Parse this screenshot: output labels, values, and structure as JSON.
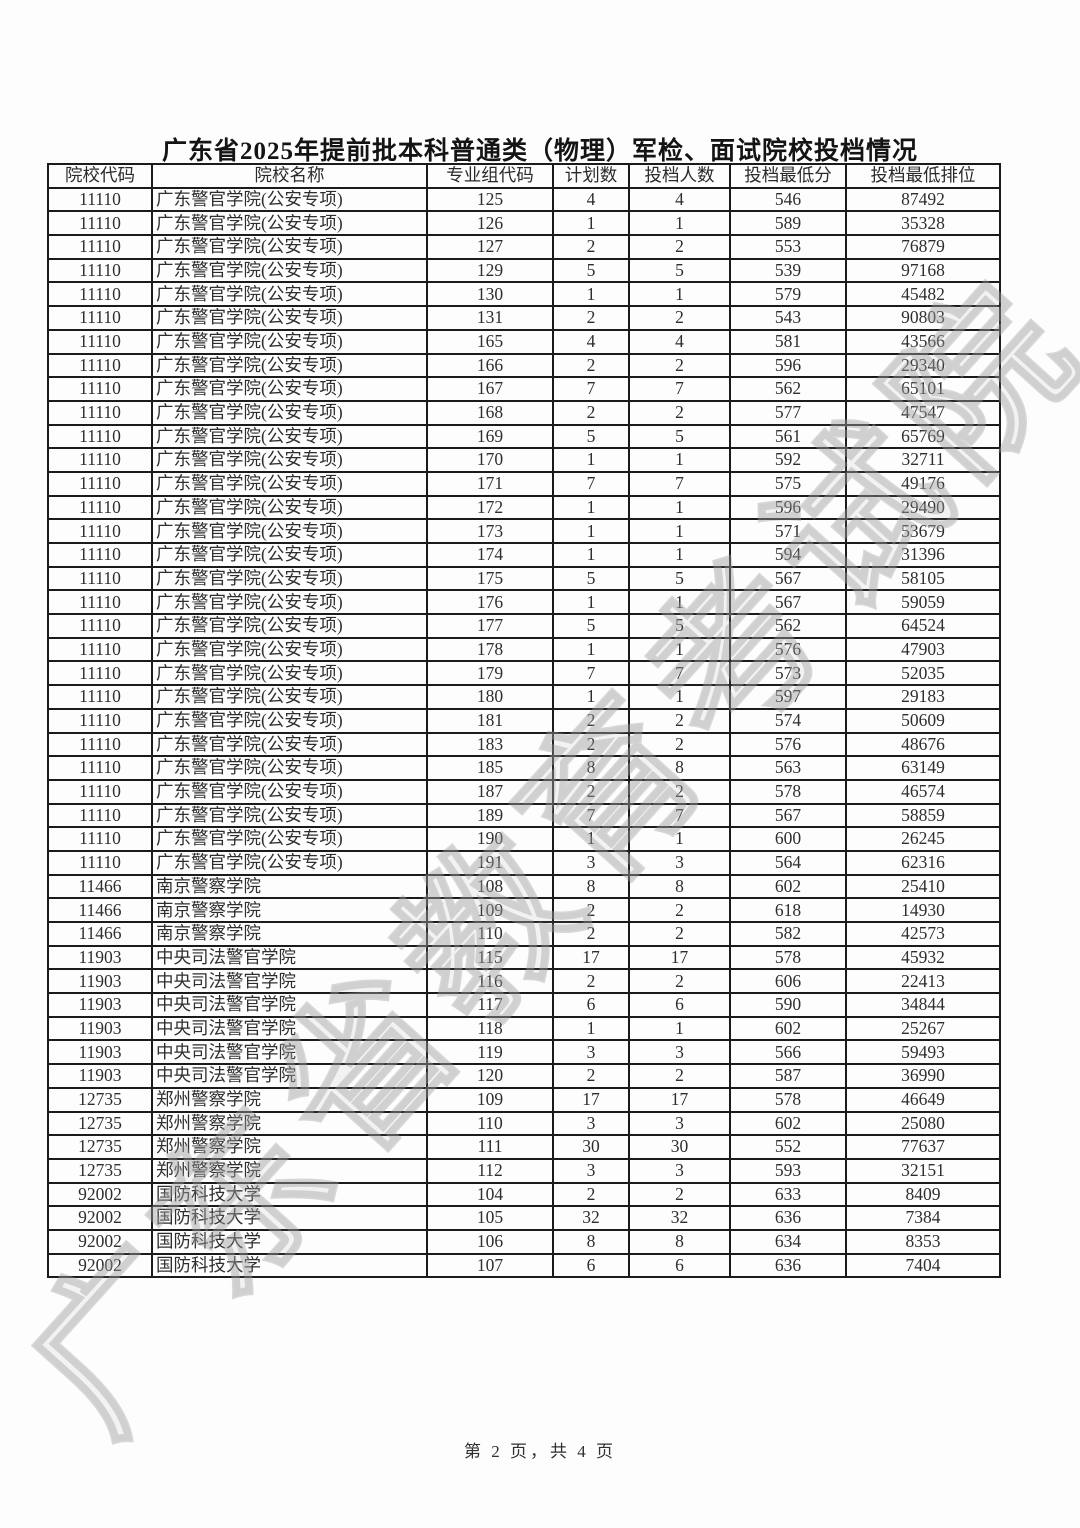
{
  "page": {
    "title": "广东省2025年提前批本科普通类（物理）军检、面试院校投档情况",
    "footer": "第 2 页，共 4 页",
    "watermark": "广东省教育考试院"
  },
  "table": {
    "headers": [
      "院校代码",
      "院校名称",
      "专业组代码",
      "计划数",
      "投档人数",
      "投档最低分",
      "投档最低排位"
    ],
    "rows": [
      [
        "11110",
        "广东警官学院(公安专项)",
        "125",
        "4",
        "4",
        "546",
        "87492"
      ],
      [
        "11110",
        "广东警官学院(公安专项)",
        "126",
        "1",
        "1",
        "589",
        "35328"
      ],
      [
        "11110",
        "广东警官学院(公安专项)",
        "127",
        "2",
        "2",
        "553",
        "76879"
      ],
      [
        "11110",
        "广东警官学院(公安专项)",
        "129",
        "5",
        "5",
        "539",
        "97168"
      ],
      [
        "11110",
        "广东警官学院(公安专项)",
        "130",
        "1",
        "1",
        "579",
        "45482"
      ],
      [
        "11110",
        "广东警官学院(公安专项)",
        "131",
        "2",
        "2",
        "543",
        "90803"
      ],
      [
        "11110",
        "广东警官学院(公安专项)",
        "165",
        "4",
        "4",
        "581",
        "43566"
      ],
      [
        "11110",
        "广东警官学院(公安专项)",
        "166",
        "2",
        "2",
        "596",
        "29340"
      ],
      [
        "11110",
        "广东警官学院(公安专项)",
        "167",
        "7",
        "7",
        "562",
        "65101"
      ],
      [
        "11110",
        "广东警官学院(公安专项)",
        "168",
        "2",
        "2",
        "577",
        "47547"
      ],
      [
        "11110",
        "广东警官学院(公安专项)",
        "169",
        "5",
        "5",
        "561",
        "65769"
      ],
      [
        "11110",
        "广东警官学院(公安专项)",
        "170",
        "1",
        "1",
        "592",
        "32711"
      ],
      [
        "11110",
        "广东警官学院(公安专项)",
        "171",
        "7",
        "7",
        "575",
        "49176"
      ],
      [
        "11110",
        "广东警官学院(公安专项)",
        "172",
        "1",
        "1",
        "596",
        "29490"
      ],
      [
        "11110",
        "广东警官学院(公安专项)",
        "173",
        "1",
        "1",
        "571",
        "53679"
      ],
      [
        "11110",
        "广东警官学院(公安专项)",
        "174",
        "1",
        "1",
        "594",
        "31396"
      ],
      [
        "11110",
        "广东警官学院(公安专项)",
        "175",
        "5",
        "5",
        "567",
        "58105"
      ],
      [
        "11110",
        "广东警官学院(公安专项)",
        "176",
        "1",
        "1",
        "567",
        "59059"
      ],
      [
        "11110",
        "广东警官学院(公安专项)",
        "177",
        "5",
        "5",
        "562",
        "64524"
      ],
      [
        "11110",
        "广东警官学院(公安专项)",
        "178",
        "1",
        "1",
        "576",
        "47903"
      ],
      [
        "11110",
        "广东警官学院(公安专项)",
        "179",
        "7",
        "7",
        "573",
        "52035"
      ],
      [
        "11110",
        "广东警官学院(公安专项)",
        "180",
        "1",
        "1",
        "597",
        "29183"
      ],
      [
        "11110",
        "广东警官学院(公安专项)",
        "181",
        "2",
        "2",
        "574",
        "50609"
      ],
      [
        "11110",
        "广东警官学院(公安专项)",
        "183",
        "2",
        "2",
        "576",
        "48676"
      ],
      [
        "11110",
        "广东警官学院(公安专项)",
        "185",
        "8",
        "8",
        "563",
        "63149"
      ],
      [
        "11110",
        "广东警官学院(公安专项)",
        "187",
        "2",
        "2",
        "578",
        "46574"
      ],
      [
        "11110",
        "广东警官学院(公安专项)",
        "189",
        "7",
        "7",
        "567",
        "58859"
      ],
      [
        "11110",
        "广东警官学院(公安专项)",
        "190",
        "1",
        "1",
        "600",
        "26245"
      ],
      [
        "11110",
        "广东警官学院(公安专项)",
        "191",
        "3",
        "3",
        "564",
        "62316"
      ],
      [
        "11466",
        "南京警察学院",
        "108",
        "8",
        "8",
        "602",
        "25410"
      ],
      [
        "11466",
        "南京警察学院",
        "109",
        "2",
        "2",
        "618",
        "14930"
      ],
      [
        "11466",
        "南京警察学院",
        "110",
        "2",
        "2",
        "582",
        "42573"
      ],
      [
        "11903",
        "中央司法警官学院",
        "115",
        "17",
        "17",
        "578",
        "45932"
      ],
      [
        "11903",
        "中央司法警官学院",
        "116",
        "2",
        "2",
        "606",
        "22413"
      ],
      [
        "11903",
        "中央司法警官学院",
        "117",
        "6",
        "6",
        "590",
        "34844"
      ],
      [
        "11903",
        "中央司法警官学院",
        "118",
        "1",
        "1",
        "602",
        "25267"
      ],
      [
        "11903",
        "中央司法警官学院",
        "119",
        "3",
        "3",
        "566",
        "59493"
      ],
      [
        "11903",
        "中央司法警官学院",
        "120",
        "2",
        "2",
        "587",
        "36990"
      ],
      [
        "12735",
        "郑州警察学院",
        "109",
        "17",
        "17",
        "578",
        "46649"
      ],
      [
        "12735",
        "郑州警察学院",
        "110",
        "3",
        "3",
        "602",
        "25080"
      ],
      [
        "12735",
        "郑州警察学院",
        "111",
        "30",
        "30",
        "552",
        "77637"
      ],
      [
        "12735",
        "郑州警察学院",
        "112",
        "3",
        "3",
        "593",
        "32151"
      ],
      [
        "92002",
        "国防科技大学",
        "104",
        "2",
        "2",
        "633",
        "8409"
      ],
      [
        "92002",
        "国防科技大学",
        "105",
        "32",
        "32",
        "636",
        "7384"
      ],
      [
        "92002",
        "国防科技大学",
        "106",
        "8",
        "8",
        "634",
        "8353"
      ],
      [
        "92002",
        "国防科技大学",
        "107",
        "6",
        "6",
        "636",
        "7404"
      ]
    ]
  }
}
